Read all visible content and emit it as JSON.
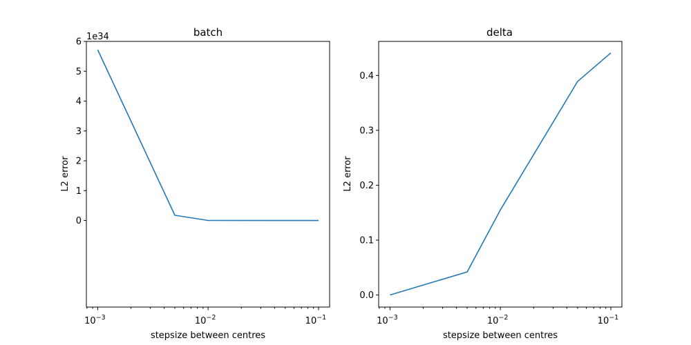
{
  "chart_data": [
    {
      "type": "line",
      "title": "batch",
      "xlabel": "stepsize between centres",
      "ylabel": "L2 error",
      "xscale": "log",
      "xlim": [
        0.00079,
        0.126
      ],
      "ylim": [
        -2.9e+34,
        6e+34
      ],
      "y_offset_text": "1e34",
      "x_ticks": [
        {
          "value": 0.001,
          "base": "10",
          "exp": "−3"
        },
        {
          "value": 0.01,
          "base": "10",
          "exp": "−2"
        },
        {
          "value": 0.1,
          "base": "10",
          "exp": "−1"
        }
      ],
      "y_ticks": [
        {
          "value": 0,
          "label": "0"
        },
        {
          "value": 1e+34,
          "label": "1"
        },
        {
          "value": 2e+34,
          "label": "2"
        },
        {
          "value": 3e+34,
          "label": "3"
        },
        {
          "value": 4e+34,
          "label": "4"
        },
        {
          "value": 5e+34,
          "label": "5"
        },
        {
          "value": 6e+34,
          "label": "6"
        }
      ],
      "series": [
        {
          "x": [
            0.001,
            0.005,
            0.01,
            0.05,
            0.1
          ],
          "y": [
            5.72e+34,
            1.75e+33,
            1e+31,
            1e+30,
            1e+29
          ]
        }
      ],
      "grid": false,
      "color": "#1f77b4"
    },
    {
      "type": "line",
      "title": "delta",
      "xlabel": "stepsize between centres",
      "ylabel": "L2 error",
      "xscale": "log",
      "xlim": [
        0.00079,
        0.126
      ],
      "ylim": [
        -0.022,
        0.462
      ],
      "x_ticks": [
        {
          "value": 0.001,
          "base": "10",
          "exp": "−3"
        },
        {
          "value": 0.01,
          "base": "10",
          "exp": "−2"
        },
        {
          "value": 0.1,
          "base": "10",
          "exp": "−1"
        }
      ],
      "y_ticks": [
        {
          "value": 0.0,
          "label": "0.0"
        },
        {
          "value": 0.1,
          "label": "0.1"
        },
        {
          "value": 0.2,
          "label": "0.2"
        },
        {
          "value": 0.3,
          "label": "0.3"
        },
        {
          "value": 0.4,
          "label": "0.4"
        }
      ],
      "series": [
        {
          "x": [
            0.001,
            0.005,
            0.01,
            0.05,
            0.1
          ],
          "y": [
            0.0,
            0.042,
            0.155,
            0.389,
            0.441
          ]
        }
      ],
      "grid": false,
      "color": "#1f77b4"
    }
  ]
}
